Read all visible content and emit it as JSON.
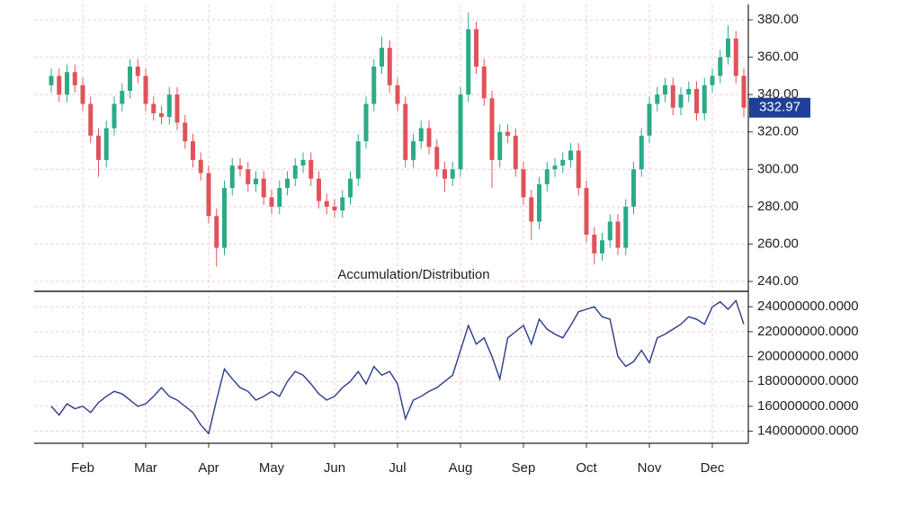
{
  "chart_data": [
    {
      "type": "candlestick",
      "up_color": "#2bab88",
      "down_color": "#e0535a",
      "open": [
        345,
        350,
        340,
        352,
        345,
        335,
        318,
        305,
        322,
        335,
        342,
        355,
        350,
        335,
        330,
        328,
        340,
        325,
        315,
        305,
        298,
        275,
        258,
        290,
        302,
        300,
        292,
        295,
        285,
        280,
        290,
        295,
        302,
        305,
        295,
        283,
        280,
        278,
        285,
        295,
        315,
        335,
        355,
        365,
        345,
        335,
        305,
        315,
        322,
        312,
        300,
        295,
        300,
        340,
        375,
        355,
        338,
        305,
        320,
        318,
        300,
        285,
        272,
        292,
        300,
        302,
        305,
        310,
        290,
        265,
        255,
        262,
        272,
        258,
        280,
        300,
        318,
        335,
        340,
        345,
        333,
        340,
        343,
        330,
        345,
        350,
        360,
        370,
        350
      ],
      "high": [
        354,
        354,
        356,
        356,
        349,
        339,
        322,
        326,
        339,
        346,
        359,
        359,
        354,
        339,
        334,
        344,
        344,
        329,
        319,
        309,
        302,
        279,
        294,
        306,
        306,
        304,
        299,
        299,
        289,
        294,
        299,
        306,
        309,
        309,
        299,
        287,
        284,
        289,
        299,
        319,
        339,
        359,
        371,
        369,
        349,
        339,
        319,
        326,
        326,
        316,
        304,
        304,
        344,
        384,
        379,
        359,
        342,
        324,
        324,
        322,
        304,
        289,
        296,
        304,
        306,
        309,
        314,
        314,
        294,
        269,
        266,
        276,
        276,
        284,
        304,
        322,
        339,
        344,
        349,
        349,
        344,
        347,
        347,
        349,
        354,
        364,
        377,
        374,
        354
      ],
      "low": [
        341,
        336,
        336,
        341,
        331,
        314,
        296,
        301,
        318,
        331,
        338,
        346,
        331,
        326,
        324,
        324,
        321,
        311,
        301,
        294,
        271,
        248,
        254,
        286,
        296,
        288,
        288,
        281,
        276,
        276,
        286,
        291,
        298,
        291,
        279,
        276,
        274,
        274,
        281,
        291,
        311,
        331,
        351,
        341,
        331,
        301,
        301,
        311,
        308,
        296,
        288,
        291,
        296,
        336,
        351,
        334,
        290,
        301,
        314,
        296,
        281,
        262,
        268,
        288,
        296,
        298,
        301,
        286,
        261,
        249,
        251,
        258,
        254,
        254,
        276,
        296,
        314,
        331,
        336,
        329,
        329,
        336,
        326,
        326,
        341,
        346,
        356,
        346,
        328
      ],
      "close": [
        350,
        340,
        352,
        345,
        335,
        318,
        305,
        322,
        335,
        342,
        355,
        350,
        335,
        330,
        328,
        340,
        325,
        315,
        305,
        298,
        275,
        258,
        290,
        302,
        300,
        292,
        295,
        285,
        280,
        290,
        295,
        302,
        305,
        295,
        283,
        280,
        278,
        285,
        295,
        315,
        335,
        355,
        365,
        345,
        335,
        305,
        315,
        322,
        312,
        300,
        295,
        300,
        340,
        375,
        355,
        338,
        305,
        320,
        318,
        300,
        285,
        272,
        292,
        300,
        302,
        305,
        310,
        290,
        265,
        255,
        262,
        272,
        258,
        280,
        300,
        318,
        335,
        340,
        345,
        333,
        340,
        343,
        330,
        345,
        350,
        360,
        370,
        350,
        332.97
      ],
      "ylim": [
        234.7,
        388.2
      ],
      "yticks": [
        {
          "value": 240,
          "label": "240.00"
        },
        {
          "value": 260,
          "label": "260.00"
        },
        {
          "value": 280,
          "label": "280.00"
        },
        {
          "value": 300,
          "label": "300.00"
        },
        {
          "value": 320,
          "label": "320.00"
        },
        {
          "value": 340,
          "label": "340.00"
        },
        {
          "value": 360,
          "label": "360.00"
        },
        {
          "value": 380,
          "label": "380.00"
        }
      ],
      "last_label_color": "#1f3f99",
      "grid": true
    },
    {
      "type": "line",
      "title": "Accumulation/Distribution",
      "categories": [
        null,
        null,
        null,
        null,
        "Feb",
        null,
        null,
        null,
        null,
        null,
        null,
        null,
        "Mar",
        null,
        null,
        null,
        null,
        null,
        null,
        null,
        "Apr",
        null,
        null,
        null,
        null,
        null,
        null,
        null,
        "May",
        null,
        null,
        null,
        null,
        null,
        null,
        null,
        "Jun",
        null,
        null,
        null,
        null,
        null,
        null,
        null,
        "Jul",
        null,
        null,
        null,
        null,
        null,
        null,
        null,
        "Aug",
        null,
        null,
        null,
        null,
        null,
        null,
        null,
        "Sep",
        null,
        null,
        null,
        null,
        null,
        null,
        null,
        "Oct",
        null,
        null,
        null,
        null,
        null,
        null,
        null,
        "Nov",
        null,
        null,
        null,
        null,
        null,
        null,
        null,
        "Dec",
        null,
        null,
        null,
        null
      ],
      "values": [
        160000000,
        153000000,
        162000000,
        158000000,
        160000000,
        155000000,
        163000000,
        168000000,
        172000000,
        170000000,
        165000000,
        160000000,
        162000000,
        168000000,
        175000000,
        168000000,
        165000000,
        160000000,
        155000000,
        145000000,
        138000000,
        165000000,
        190000000,
        182000000,
        175000000,
        172000000,
        165000000,
        168000000,
        172000000,
        168000000,
        180000000,
        188000000,
        185000000,
        178000000,
        170000000,
        165000000,
        168000000,
        175000000,
        180000000,
        188000000,
        178000000,
        192000000,
        185000000,
        188000000,
        178000000,
        150000000,
        165000000,
        168000000,
        172000000,
        175000000,
        180000000,
        185000000,
        205000000,
        225000000,
        210000000,
        215000000,
        200000000,
        182000000,
        215000000,
        220000000,
        225000000,
        210000000,
        230000000,
        222000000,
        218000000,
        215000000,
        225000000,
        236000000,
        238000000,
        240000000,
        232000000,
        230000000,
        200000000,
        192000000,
        196000000,
        205000000,
        195000000,
        215000000,
        218000000,
        222000000,
        226000000,
        232000000,
        230000000,
        226000000,
        240000000,
        244000000,
        238000000,
        245000000,
        226000000
      ],
      "color": "#2a3a8a",
      "ylim": [
        131000000,
        251000000
      ],
      "yticks": [
        {
          "value": 140000000,
          "label": "140000000.0000"
        },
        {
          "value": 160000000,
          "label": "160000000.0000"
        },
        {
          "value": 180000000,
          "label": "180000000.0000"
        },
        {
          "value": 200000000,
          "label": "200000000.0000"
        },
        {
          "value": 220000000,
          "label": "220000000.0000"
        },
        {
          "value": 240000000,
          "label": "240000000.0000"
        }
      ],
      "grid": true
    }
  ]
}
